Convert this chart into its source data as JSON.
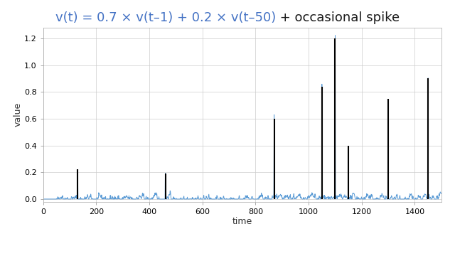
{
  "title_blue": "v(t) = 0.7 × v(t–1) + 0.2 × v(t–50)",
  "title_black": " + occasional spike",
  "title_blue_color": "#4472C4",
  "title_black_color": "#1a1a1a",
  "xlabel": "time",
  "ylabel": "value",
  "ylim": [
    -0.02,
    1.28
  ],
  "xlim": [
    0,
    1500
  ],
  "yticks": [
    0.0,
    0.2,
    0.4,
    0.6,
    0.8,
    1.0,
    1.2
  ],
  "xticks": [
    0,
    200,
    400,
    600,
    800,
    1000,
    1200,
    1400
  ],
  "line_color": "#5B9BD5",
  "spike_color": "#000000",
  "background_color": "#ffffff",
  "footer_bg": "#333333",
  "n_points": 1500,
  "ar1": 0.7,
  "ar50": 0.2,
  "spike_times": [
    130,
    460,
    870,
    1050,
    1100,
    1150,
    1300,
    1450
  ],
  "spike_heights": [
    0.22,
    0.19,
    0.6,
    0.84,
    1.2,
    0.4,
    0.75,
    0.9
  ],
  "seed": 42,
  "title_fontsize": 13,
  "label_fontsize": 9,
  "tick_fontsize": 8
}
